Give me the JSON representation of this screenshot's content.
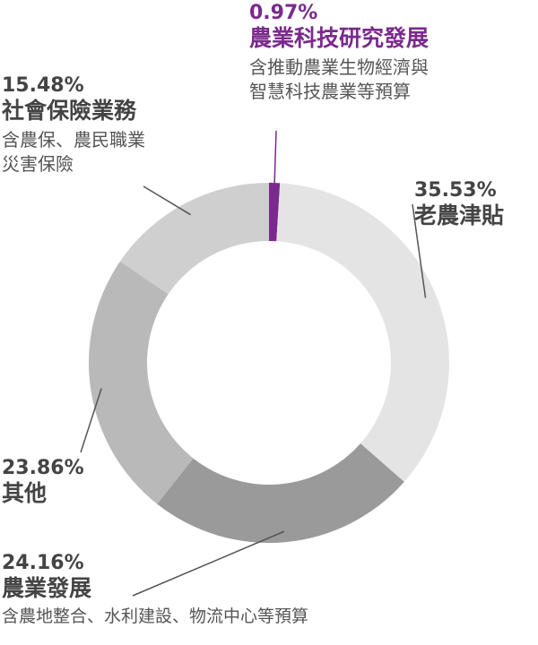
{
  "chart_data": {
    "type": "pie",
    "style": "donut",
    "start_angle_deg": 0,
    "direction": "clockwise",
    "slices": [
      {
        "key": "tech",
        "percent_label": "0.97%",
        "value": 0.97,
        "label": "農業科技研究發展",
        "desc1": "含推動農業生物經濟與",
        "desc2": "智慧科技農業等預算",
        "color": "#7a2a8c"
      },
      {
        "key": "subsidy",
        "percent_label": "35.53%",
        "value": 35.53,
        "label": "老農津貼",
        "desc1": "",
        "desc2": "",
        "color": "#e4e4e4"
      },
      {
        "key": "develop",
        "percent_label": "24.16%",
        "value": 24.16,
        "label": "農業發展",
        "desc1": "含農地整合、水利建設、物流中心等預算",
        "desc2": "",
        "color": "#9a9a9a"
      },
      {
        "key": "other",
        "percent_label": "23.86%",
        "value": 23.86,
        "label": "其他",
        "desc1": "",
        "desc2": "",
        "color": "#b9b9b9"
      },
      {
        "key": "social",
        "percent_label": "15.48%",
        "value": 15.48,
        "label": "社會保險業務",
        "desc1": "含農保、農民職業",
        "desc2": "災害保險",
        "color": "#cfcfcf"
      }
    ]
  }
}
